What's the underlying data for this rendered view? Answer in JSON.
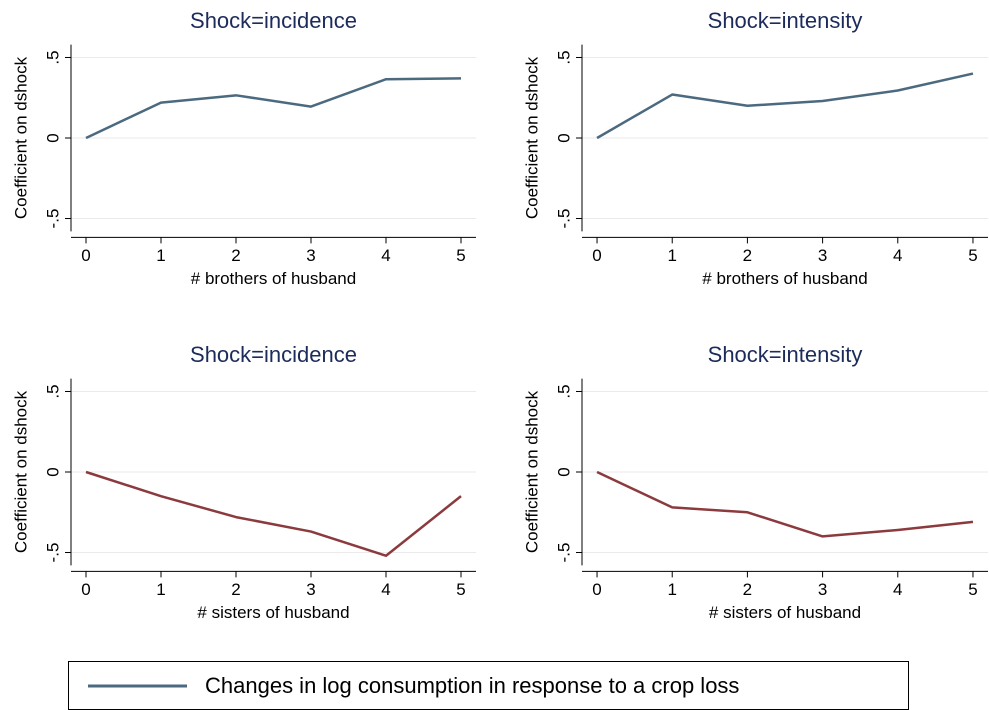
{
  "chart_data": [
    {
      "type": "line",
      "title": "Shock=incidence",
      "xlabel": "# brothers of husband",
      "ylabel": "Coefficient on dshock",
      "x": [
        0,
        1,
        2,
        3,
        4,
        5
      ],
      "series": [
        {
          "name": "Changes in log consumption in response to a crop loss",
          "color": "#4b6a80",
          "values": [
            0,
            0.22,
            0.265,
            0.195,
            0.365,
            0.37
          ]
        }
      ],
      "xlim": [
        -0.2,
        5.2
      ],
      "xticks": [
        0,
        1,
        2,
        3,
        4,
        5
      ],
      "ylim": [
        -0.58,
        0.58
      ],
      "yticks": [
        {
          "value": -0.5,
          "label": "-.5"
        },
        0,
        {
          "value": 0.5,
          "label": ".5"
        }
      ],
      "grid": true
    },
    {
      "type": "line",
      "title": "Shock=intensity",
      "xlabel": "# brothers of husband",
      "ylabel": "Coefficient on dshock",
      "x": [
        0,
        1,
        2,
        3,
        4,
        5
      ],
      "series": [
        {
          "color": "#4b6a80",
          "values": [
            0,
            0.27,
            0.2,
            0.23,
            0.295,
            0.4
          ]
        }
      ],
      "xlim": [
        -0.2,
        5.2
      ],
      "xticks": [
        0,
        1,
        2,
        3,
        4,
        5
      ],
      "ylim": [
        -0.58,
        0.58
      ],
      "yticks": [
        {
          "value": -0.5,
          "label": "-.5"
        },
        0,
        {
          "value": 0.5,
          "label": ".5"
        }
      ],
      "grid": true
    },
    {
      "type": "line",
      "title": "Shock=incidence",
      "xlabel": "# sisters of husband",
      "ylabel": "Coefficient on dshock",
      "x": [
        0,
        1,
        2,
        3,
        4,
        5
      ],
      "series": [
        {
          "color": "#8b3a3e",
          "values": [
            0,
            -0.15,
            -0.28,
            -0.37,
            -0.52,
            -0.15
          ]
        }
      ],
      "xlim": [
        -0.2,
        5.2
      ],
      "xticks": [
        0,
        1,
        2,
        3,
        4,
        5
      ],
      "ylim": [
        -0.58,
        0.58
      ],
      "yticks": [
        {
          "value": -0.5,
          "label": "-.5"
        },
        0,
        {
          "value": 0.5,
          "label": ".5"
        }
      ],
      "grid": true
    },
    {
      "type": "line",
      "title": "Shock=intensity",
      "xlabel": "# sisters of husband",
      "ylabel": "Coefficient on dshock",
      "x": [
        0,
        1,
        2,
        3,
        4,
        5
      ],
      "series": [
        {
          "color": "#8b3a3e",
          "values": [
            0,
            -0.22,
            -0.25,
            -0.4,
            -0.36,
            -0.31
          ]
        }
      ],
      "xlim": [
        -0.2,
        5.2
      ],
      "xticks": [
        0,
        1,
        2,
        3,
        4,
        5
      ],
      "ylim": [
        -0.58,
        0.58
      ],
      "yticks": [
        {
          "value": -0.5,
          "label": "-.5"
        },
        0,
        {
          "value": 0.5,
          "label": ".5"
        }
      ],
      "grid": true
    }
  ]
}
